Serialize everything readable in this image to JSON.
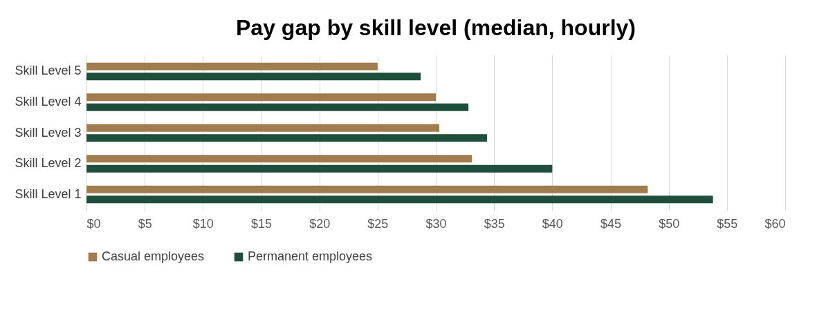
{
  "chart_data": {
    "type": "bar",
    "orientation": "horizontal",
    "title": "Pay gap by skill level (median, hourly)",
    "categories": [
      "Skill Level 5",
      "Skill Level 4",
      "Skill Level 3",
      "Skill Level 2",
      "Skill Level 1"
    ],
    "series": [
      {
        "name": "Casual employees",
        "color": "#a07c4e",
        "values": [
          25,
          30,
          30.3,
          33.1,
          48.2
        ]
      },
      {
        "name": "Permanent employees",
        "color": "#1f4e3d",
        "values": [
          28.7,
          32.8,
          34.4,
          40,
          53.8
        ]
      }
    ],
    "xlim": [
      0,
      60
    ],
    "xticks": [
      {
        "value": 0,
        "label": "$0"
      },
      {
        "value": 5,
        "label": "$5"
      },
      {
        "value": 10,
        "label": "$10"
      },
      {
        "value": 15,
        "label": "$15"
      },
      {
        "value": 20,
        "label": "$20"
      },
      {
        "value": 25,
        "label": "$25"
      },
      {
        "value": 30,
        "label": "$30"
      },
      {
        "value": 35,
        "label": "$35"
      },
      {
        "value": 40,
        "label": "$40"
      },
      {
        "value": 45,
        "label": "$45"
      },
      {
        "value": 50,
        "label": "$50"
      },
      {
        "value": 55,
        "label": "$55"
      },
      {
        "value": 60,
        "label": "$60"
      }
    ],
    "grid": "x",
    "legend": "bottom"
  }
}
